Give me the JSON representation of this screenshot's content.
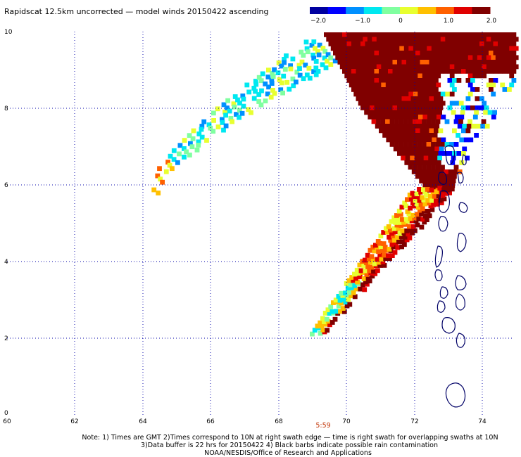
{
  "title": "Rapidscat 12.5km uncorrected — model winds 20150422 ascending",
  "colorbar": {
    "labels": [
      "−2.0",
      "−1.0",
      "0",
      "1.0",
      "2.0"
    ],
    "values": [
      -2.0,
      -1.0,
      0,
      1.0,
      2.0
    ],
    "colors": [
      "#0000a0",
      "#0000ff",
      "#0090ff",
      "#00e8f0",
      "#80ffa0",
      "#e8ff30",
      "#ffc000",
      "#ff6000",
      "#e00000",
      "#800000"
    ]
  },
  "axes": {
    "x_ticks": [
      "60",
      "62",
      "64",
      "66",
      "68",
      "70",
      "72",
      "74"
    ],
    "x_values": [
      60,
      62,
      64,
      66,
      68,
      70,
      72,
      74
    ],
    "y_ticks": [
      "0",
      "2",
      "4",
      "6",
      "8",
      "10"
    ],
    "y_values": [
      0,
      2,
      4,
      6,
      8,
      10
    ],
    "x_range": [
      60,
      75
    ],
    "y_range": [
      0,
      10
    ]
  },
  "swath_time": "5:59",
  "notes": [
    "Note: 1) Times are GMT 2)Times correspond to 10N at right swath edge — time is right swath for overlapping swaths at 10N",
    "3)Data buffer is 22 hrs for 20150422 4) Black barbs indicate possible rain contamination",
    "NOAA/NESDIS/Office of Research and Applications"
  ]
}
